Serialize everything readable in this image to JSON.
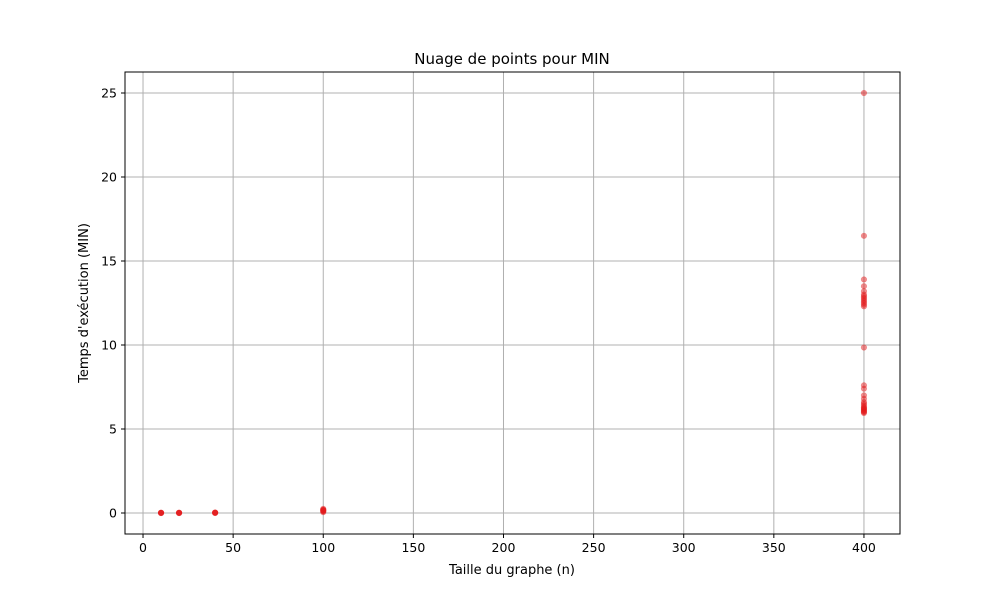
{
  "chart_data": {
    "type": "scatter",
    "title": "Nuage de points pour MIN",
    "xlabel": "Taille du graphe (n)",
    "ylabel": "Temps d'exécution (MIN)",
    "xlim": [
      -10,
      420
    ],
    "ylim": [
      -1.25,
      26.25
    ],
    "xticks": [
      0,
      50,
      100,
      150,
      200,
      250,
      300,
      350,
      400
    ],
    "yticks": [
      0,
      5,
      10,
      15,
      20,
      25
    ],
    "grid": true,
    "legend": "none",
    "marker_color": "#e41a1c",
    "marker_opacity": 0.5,
    "series": [
      {
        "points": [
          {
            "x": 10,
            "y": 0.0
          },
          {
            "x": 10,
            "y": 0.01
          },
          {
            "x": 10,
            "y": 0.02
          },
          {
            "x": 10,
            "y": 0.0
          },
          {
            "x": 10,
            "y": 0.01
          },
          {
            "x": 20,
            "y": 0.0
          },
          {
            "x": 20,
            "y": 0.01
          },
          {
            "x": 20,
            "y": 0.02
          },
          {
            "x": 20,
            "y": 0.0
          },
          {
            "x": 20,
            "y": 0.01
          },
          {
            "x": 40,
            "y": 0.0
          },
          {
            "x": 40,
            "y": 0.02
          },
          {
            "x": 40,
            "y": 0.03
          },
          {
            "x": 40,
            "y": 0.01
          },
          {
            "x": 40,
            "y": 0.02
          },
          {
            "x": 100,
            "y": 0.05
          },
          {
            "x": 100,
            "y": 0.1
          },
          {
            "x": 100,
            "y": 0.15
          },
          {
            "x": 100,
            "y": 0.2
          },
          {
            "x": 100,
            "y": 0.25
          },
          {
            "x": 100,
            "y": 0.12
          },
          {
            "x": 100,
            "y": 0.18
          },
          {
            "x": 400,
            "y": 25.0
          },
          {
            "x": 400,
            "y": 16.5
          },
          {
            "x": 400,
            "y": 13.9
          },
          {
            "x": 400,
            "y": 13.5
          },
          {
            "x": 400,
            "y": 13.2
          },
          {
            "x": 400,
            "y": 13.0
          },
          {
            "x": 400,
            "y": 12.9
          },
          {
            "x": 400,
            "y": 12.8
          },
          {
            "x": 400,
            "y": 12.7
          },
          {
            "x": 400,
            "y": 12.6
          },
          {
            "x": 400,
            "y": 12.5
          },
          {
            "x": 400,
            "y": 12.4
          },
          {
            "x": 400,
            "y": 12.3
          },
          {
            "x": 400,
            "y": 9.85
          },
          {
            "x": 400,
            "y": 7.6
          },
          {
            "x": 400,
            "y": 7.4
          },
          {
            "x": 400,
            "y": 7.0
          },
          {
            "x": 400,
            "y": 6.8
          },
          {
            "x": 400,
            "y": 6.6
          },
          {
            "x": 400,
            "y": 6.5
          },
          {
            "x": 400,
            "y": 6.4
          },
          {
            "x": 400,
            "y": 6.3
          },
          {
            "x": 400,
            "y": 6.25
          },
          {
            "x": 400,
            "y": 6.2
          },
          {
            "x": 400,
            "y": 6.15
          },
          {
            "x": 400,
            "y": 6.1
          },
          {
            "x": 400,
            "y": 6.05
          },
          {
            "x": 400,
            "y": 6.0
          },
          {
            "x": 400,
            "y": 5.95
          }
        ]
      }
    ]
  }
}
